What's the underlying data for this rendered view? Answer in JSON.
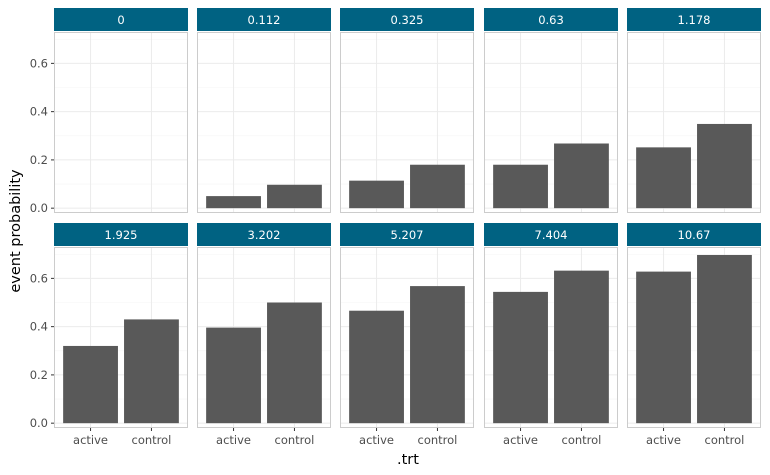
{
  "chart_data": {
    "type": "bar",
    "facet_by": "time",
    "facets": [
      "0",
      "0.112",
      "0.325",
      "0.63",
      "1.178",
      "1.925",
      "3.202",
      "5.207",
      "7.404",
      "10.67"
    ],
    "categories": [
      "active",
      "control"
    ],
    "values": [
      [
        0.0,
        0.0
      ],
      [
        0.05,
        0.097
      ],
      [
        0.114,
        0.18
      ],
      [
        0.18,
        0.268
      ],
      [
        0.252,
        0.349
      ],
      [
        0.32,
        0.43
      ],
      [
        0.396,
        0.5
      ],
      [
        0.466,
        0.568
      ],
      [
        0.544,
        0.632
      ],
      [
        0.628,
        0.697
      ]
    ],
    "xlabel": ".trt",
    "ylabel": "event probability",
    "ylim": [
      -0.02,
      0.73
    ],
    "yticks": [
      0.0,
      0.2,
      0.4,
      0.6
    ],
    "ytick_labels": [
      "0.0",
      "0.2",
      "0.4",
      "0.6"
    ],
    "layout": "2 rows x 5 columns",
    "grid": true,
    "colors": {
      "bar": "#595959",
      "strip_bg": "#006282",
      "strip_text": "#ffffff",
      "grid_major": "#ebebeb",
      "grid_minor": "#f5f5f5",
      "panel_border": "#cccccc"
    }
  }
}
